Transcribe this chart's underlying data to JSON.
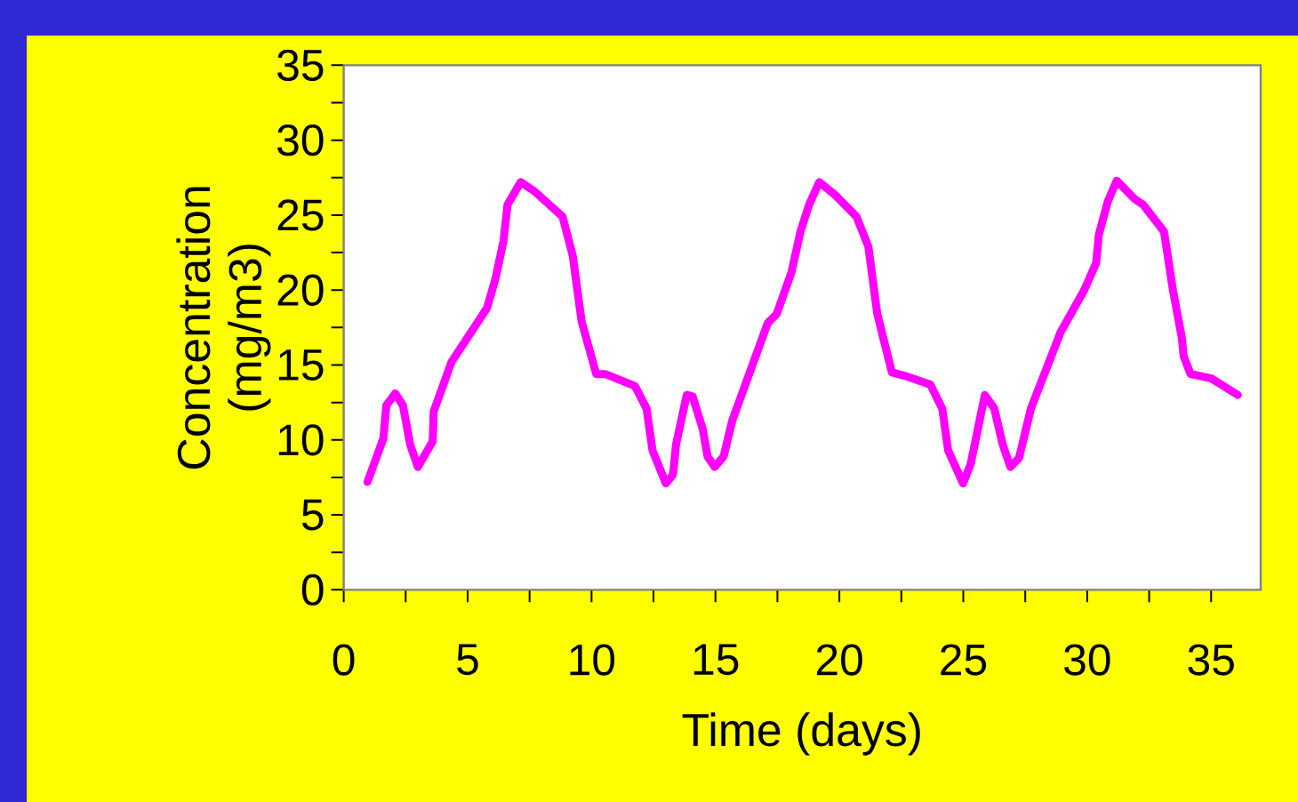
{
  "chart_data": {
    "type": "line",
    "xlabel": "Time (days)",
    "ylabel": "Concentration (mg/m3)",
    "xlim": [
      0,
      37
    ],
    "ylim": [
      0,
      35
    ],
    "xticks": [
      0,
      {
        "value": 2.5,
        "label": null
      },
      5,
      {
        "value": 7.5,
        "label": null
      },
      10,
      {
        "value": 12.5,
        "label": null
      },
      15,
      {
        "value": 17.5,
        "label": null
      },
      20,
      {
        "value": 22.5,
        "label": null
      },
      25,
      {
        "value": 27.5,
        "label": null
      },
      30,
      {
        "value": 32.5,
        "label": null
      },
      35
    ],
    "yticks": [
      0,
      {
        "value": 2.5,
        "label": null
      },
      5,
      {
        "value": 7.5,
        "label": null
      },
      10,
      {
        "value": 12.5,
        "label": null
      },
      15,
      {
        "value": 17.5,
        "label": null
      },
      20,
      {
        "value": 22.5,
        "label": null
      },
      25,
      {
        "value": 27.5,
        "label": null
      },
      30,
      {
        "value": 32.5,
        "label": null
      },
      35
    ],
    "grid": false,
    "line_style": "solid",
    "series": [
      {
        "color": "#ff00ff",
        "x": [
          0.96,
          1.6,
          1.72,
          2.08,
          2.39,
          2.68,
          2.99,
          3.27,
          3.59,
          3.63,
          4.35,
          5.78,
          6.13,
          6.45,
          6.61,
          7.14,
          7.69,
          8.83,
          9.24,
          9.6,
          10.19,
          10.55,
          11.75,
          12.22,
          12.46,
          13.0,
          13.29,
          13.41,
          13.84,
          14.08,
          14.49,
          14.68,
          14.97,
          15.33,
          15.68,
          17.11,
          17.47,
          18.07,
          18.43,
          18.78,
          19.19,
          19.86,
          20.69,
          21.17,
          21.53,
          22.12,
          22.6,
          23.67,
          24.15,
          24.39,
          24.99,
          25.3,
          25.87,
          26.25,
          26.59,
          26.9,
          27.25,
          27.73,
          28.93,
          29.88,
          30.36,
          30.47,
          30.83,
          31.19,
          31.9,
          32.26,
          33.1,
          33.46,
          33.82,
          33.89,
          34.17,
          35.01,
          36.08
        ],
        "values": [
          7.2,
          10.1,
          12.3,
          13.1,
          12.3,
          9.7,
          8.2,
          9.0,
          9.9,
          11.9,
          15.2,
          18.8,
          20.8,
          23.3,
          25.7,
          27.2,
          26.6,
          24.9,
          22.3,
          17.9,
          14.4,
          14.4,
          13.6,
          12.1,
          9.3,
          7.1,
          7.7,
          9.7,
          13.0,
          12.9,
          10.7,
          8.9,
          8.2,
          8.9,
          11.3,
          17.8,
          18.4,
          21.2,
          23.9,
          25.7,
          27.2,
          26.3,
          24.9,
          22.9,
          18.4,
          14.5,
          14.3,
          13.7,
          12.1,
          9.3,
          7.1,
          8.4,
          13.0,
          12.1,
          9.7,
          8.2,
          8.8,
          12.1,
          17.2,
          20.0,
          21.8,
          23.7,
          25.9,
          27.3,
          26.1,
          25.7,
          23.9,
          20.0,
          16.8,
          15.6,
          14.4,
          14.1,
          13.0
        ]
      }
    ]
  }
}
